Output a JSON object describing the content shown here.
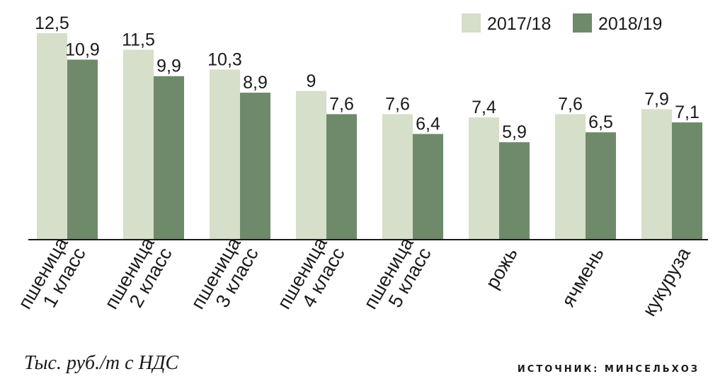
{
  "chart_data": {
    "type": "bar",
    "categories": [
      [
        "пшеница",
        "1 класс"
      ],
      [
        "пшеница",
        "2 класс"
      ],
      [
        "пшеница",
        "3 класс"
      ],
      [
        "пшеница",
        "4 класс"
      ],
      [
        "пшеница",
        "5 класс"
      ],
      [
        "рожь"
      ],
      [
        "ячмень"
      ],
      [
        "кукуруза"
      ]
    ],
    "series": [
      {
        "name": "2017/18",
        "color": "#d5dfc9",
        "values": [
          12.5,
          11.5,
          10.3,
          9,
          7.6,
          7.4,
          7.6,
          7.9
        ],
        "labels": [
          "12,5",
          "11,5",
          "10,3",
          "9",
          "7,6",
          "7,4",
          "7,6",
          "7,9"
        ]
      },
      {
        "name": "2018/19",
        "color": "#6e8a6b",
        "values": [
          10.9,
          9.9,
          8.9,
          7.6,
          6.4,
          5.9,
          6.5,
          7.1
        ],
        "labels": [
          "10,9",
          "9,9",
          "8,9",
          "7,6",
          "6,4",
          "5,9",
          "6,5",
          "7,1"
        ]
      }
    ],
    "ylim": [
      0,
      12.5
    ],
    "grid": false,
    "legend": "top-right"
  },
  "footer": {
    "unit": "Тыс. руб./т с НДС",
    "source": "ИСТОЧНИК: МИНСЕЛЬХОЗ"
  }
}
